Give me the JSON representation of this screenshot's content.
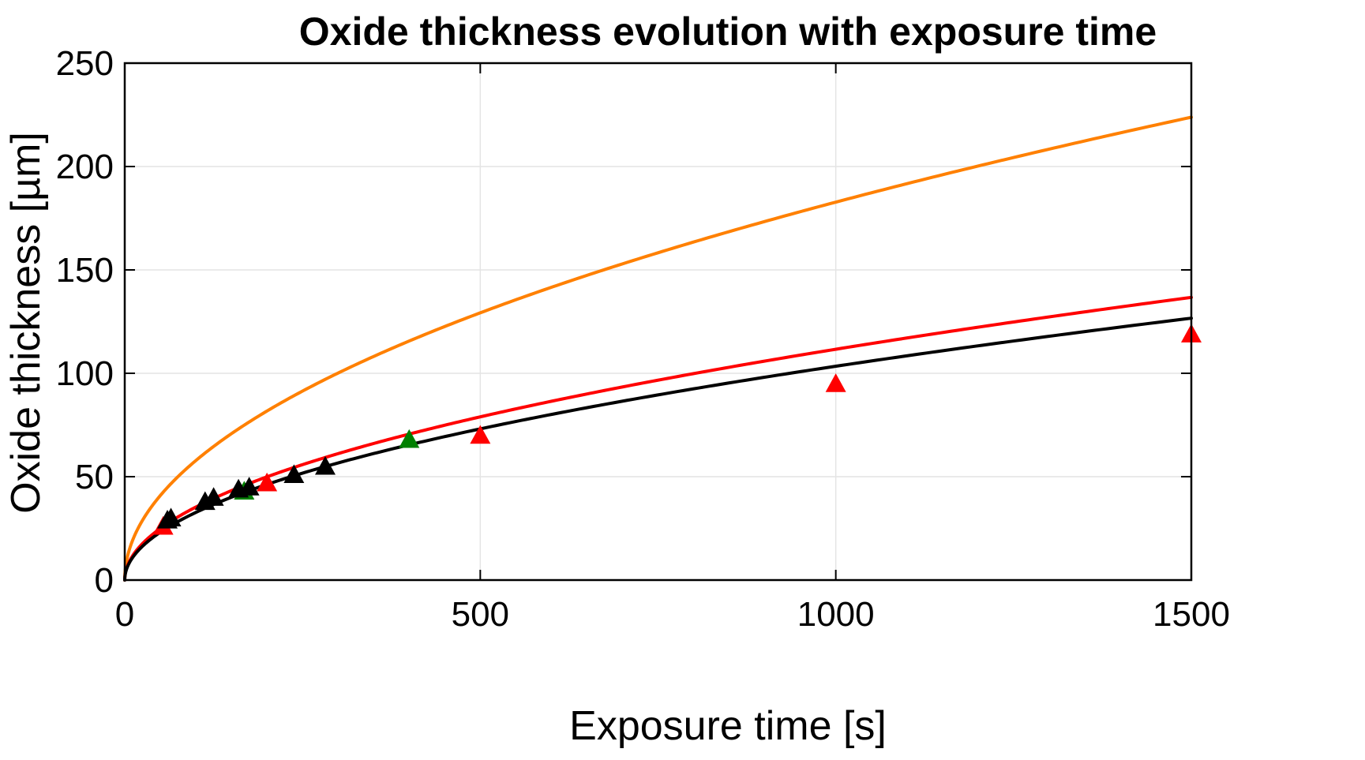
{
  "chart_data": {
    "type": "line",
    "title": "Oxide thickness evolution with exposure time",
    "xlabel": "Exposure time [s]",
    "ylabel": "Oxide thickness [µm]",
    "xlim": [
      0,
      1500
    ],
    "ylim": [
      0,
      250
    ],
    "xticks": [
      0,
      500,
      1000,
      1500
    ],
    "yticks": [
      0,
      50,
      100,
      150,
      200,
      250
    ],
    "xtick_labels": [
      "0",
      "500",
      "1000",
      "1500"
    ],
    "ytick_labels": [
      "0",
      "50",
      "100",
      "150",
      "200",
      "250"
    ],
    "grid": true,
    "legend": "none",
    "series": [
      {
        "kind": "line",
        "color": "#ff8000",
        "coef": 5.78
      },
      {
        "kind": "line",
        "color": "#ff0000",
        "coef": 3.53
      },
      {
        "kind": "line",
        "color": "#000000",
        "coef": 3.27
      },
      {
        "kind": "marker",
        "marker": "triangle",
        "color": "#ff0000",
        "x": [
          54,
          200,
          500,
          1000,
          1500
        ],
        "y": [
          26,
          47,
          70,
          95,
          119
        ]
      },
      {
        "kind": "marker",
        "marker": "triangle",
        "color": "#008000",
        "x": [
          168,
          400
        ],
        "y": [
          43,
          68
        ]
      },
      {
        "kind": "marker",
        "marker": "triangle",
        "color": "#000000",
        "x": [
          60,
          65,
          113,
          125,
          160,
          175,
          238,
          282
        ],
        "y": [
          29,
          30,
          38,
          40,
          44,
          45,
          51,
          55
        ]
      }
    ]
  }
}
